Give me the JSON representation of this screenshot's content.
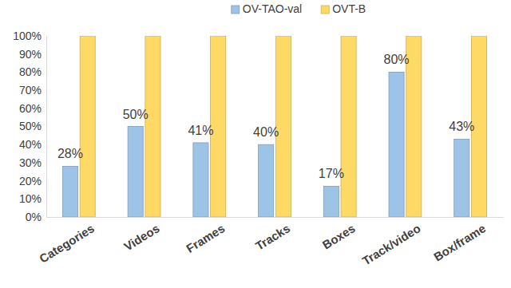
{
  "chart_data": {
    "type": "bar",
    "categories": [
      "Categories",
      "Videos",
      "Frames",
      "Tracks",
      "Boxes",
      "Track/video",
      "Box/frame"
    ],
    "series": [
      {
        "name": "OV-TAO-val",
        "color": "#9dc3e6",
        "values": [
          28,
          50,
          41,
          40,
          17,
          80,
          43
        ],
        "data_labels": true,
        "value_labels": [
          "28%",
          "50%",
          "41%",
          "40%",
          "17%",
          "80%",
          "43%"
        ]
      },
      {
        "name": "OVT-B",
        "color": "#ffd966",
        "values": [
          100,
          100,
          100,
          100,
          100,
          100,
          100
        ]
      }
    ],
    "ylim": [
      0,
      100
    ],
    "yticks": [
      {
        "value": 0,
        "label": "0%"
      },
      {
        "value": 10,
        "label": "10%"
      },
      {
        "value": 20,
        "label": "20%"
      },
      {
        "value": 30,
        "label": "30%"
      },
      {
        "value": 40,
        "label": "40%"
      },
      {
        "value": 50,
        "label": "50%"
      },
      {
        "value": 60,
        "label": "60%"
      },
      {
        "value": 70,
        "label": "70%"
      },
      {
        "value": 80,
        "label": "80%"
      },
      {
        "value": 90,
        "label": "90%"
      },
      {
        "value": 100,
        "label": "100%"
      }
    ],
    "grid": false,
    "legend": "top"
  }
}
